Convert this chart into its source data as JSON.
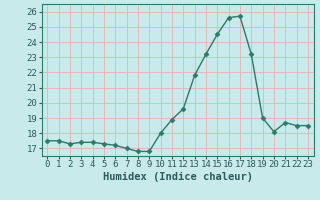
{
  "x": [
    0,
    1,
    2,
    3,
    4,
    5,
    6,
    7,
    8,
    9,
    10,
    11,
    12,
    13,
    14,
    15,
    16,
    17,
    18,
    19,
    20,
    21,
    22,
    23
  ],
  "y": [
    17.5,
    17.5,
    17.3,
    17.4,
    17.4,
    17.3,
    17.2,
    17.0,
    16.8,
    16.8,
    18.0,
    18.9,
    19.6,
    21.8,
    23.2,
    24.5,
    25.6,
    25.7,
    23.2,
    19.0,
    18.1,
    18.7,
    18.5,
    18.5
  ],
  "line_color": "#2d7a6a",
  "marker": "D",
  "markersize": 2.5,
  "linewidth": 1.0,
  "bg_color": "#c8eaea",
  "grid_color": "#e8b0b0",
  "grid_color_minor": "#e8b0b0",
  "xlabel": "Humidex (Indice chaleur)",
  "xlim": [
    -0.5,
    23.5
  ],
  "ylim": [
    16.5,
    26.5
  ],
  "yticks": [
    17,
    18,
    19,
    20,
    21,
    22,
    23,
    24,
    25,
    26
  ],
  "xticks": [
    0,
    1,
    2,
    3,
    4,
    5,
    6,
    7,
    8,
    9,
    10,
    11,
    12,
    13,
    14,
    15,
    16,
    17,
    18,
    19,
    20,
    21,
    22,
    23
  ],
  "xlabel_fontsize": 7.5,
  "tick_fontsize": 6.5,
  "spine_color": "#2d7a6a",
  "text_color": "#2d5a5a"
}
